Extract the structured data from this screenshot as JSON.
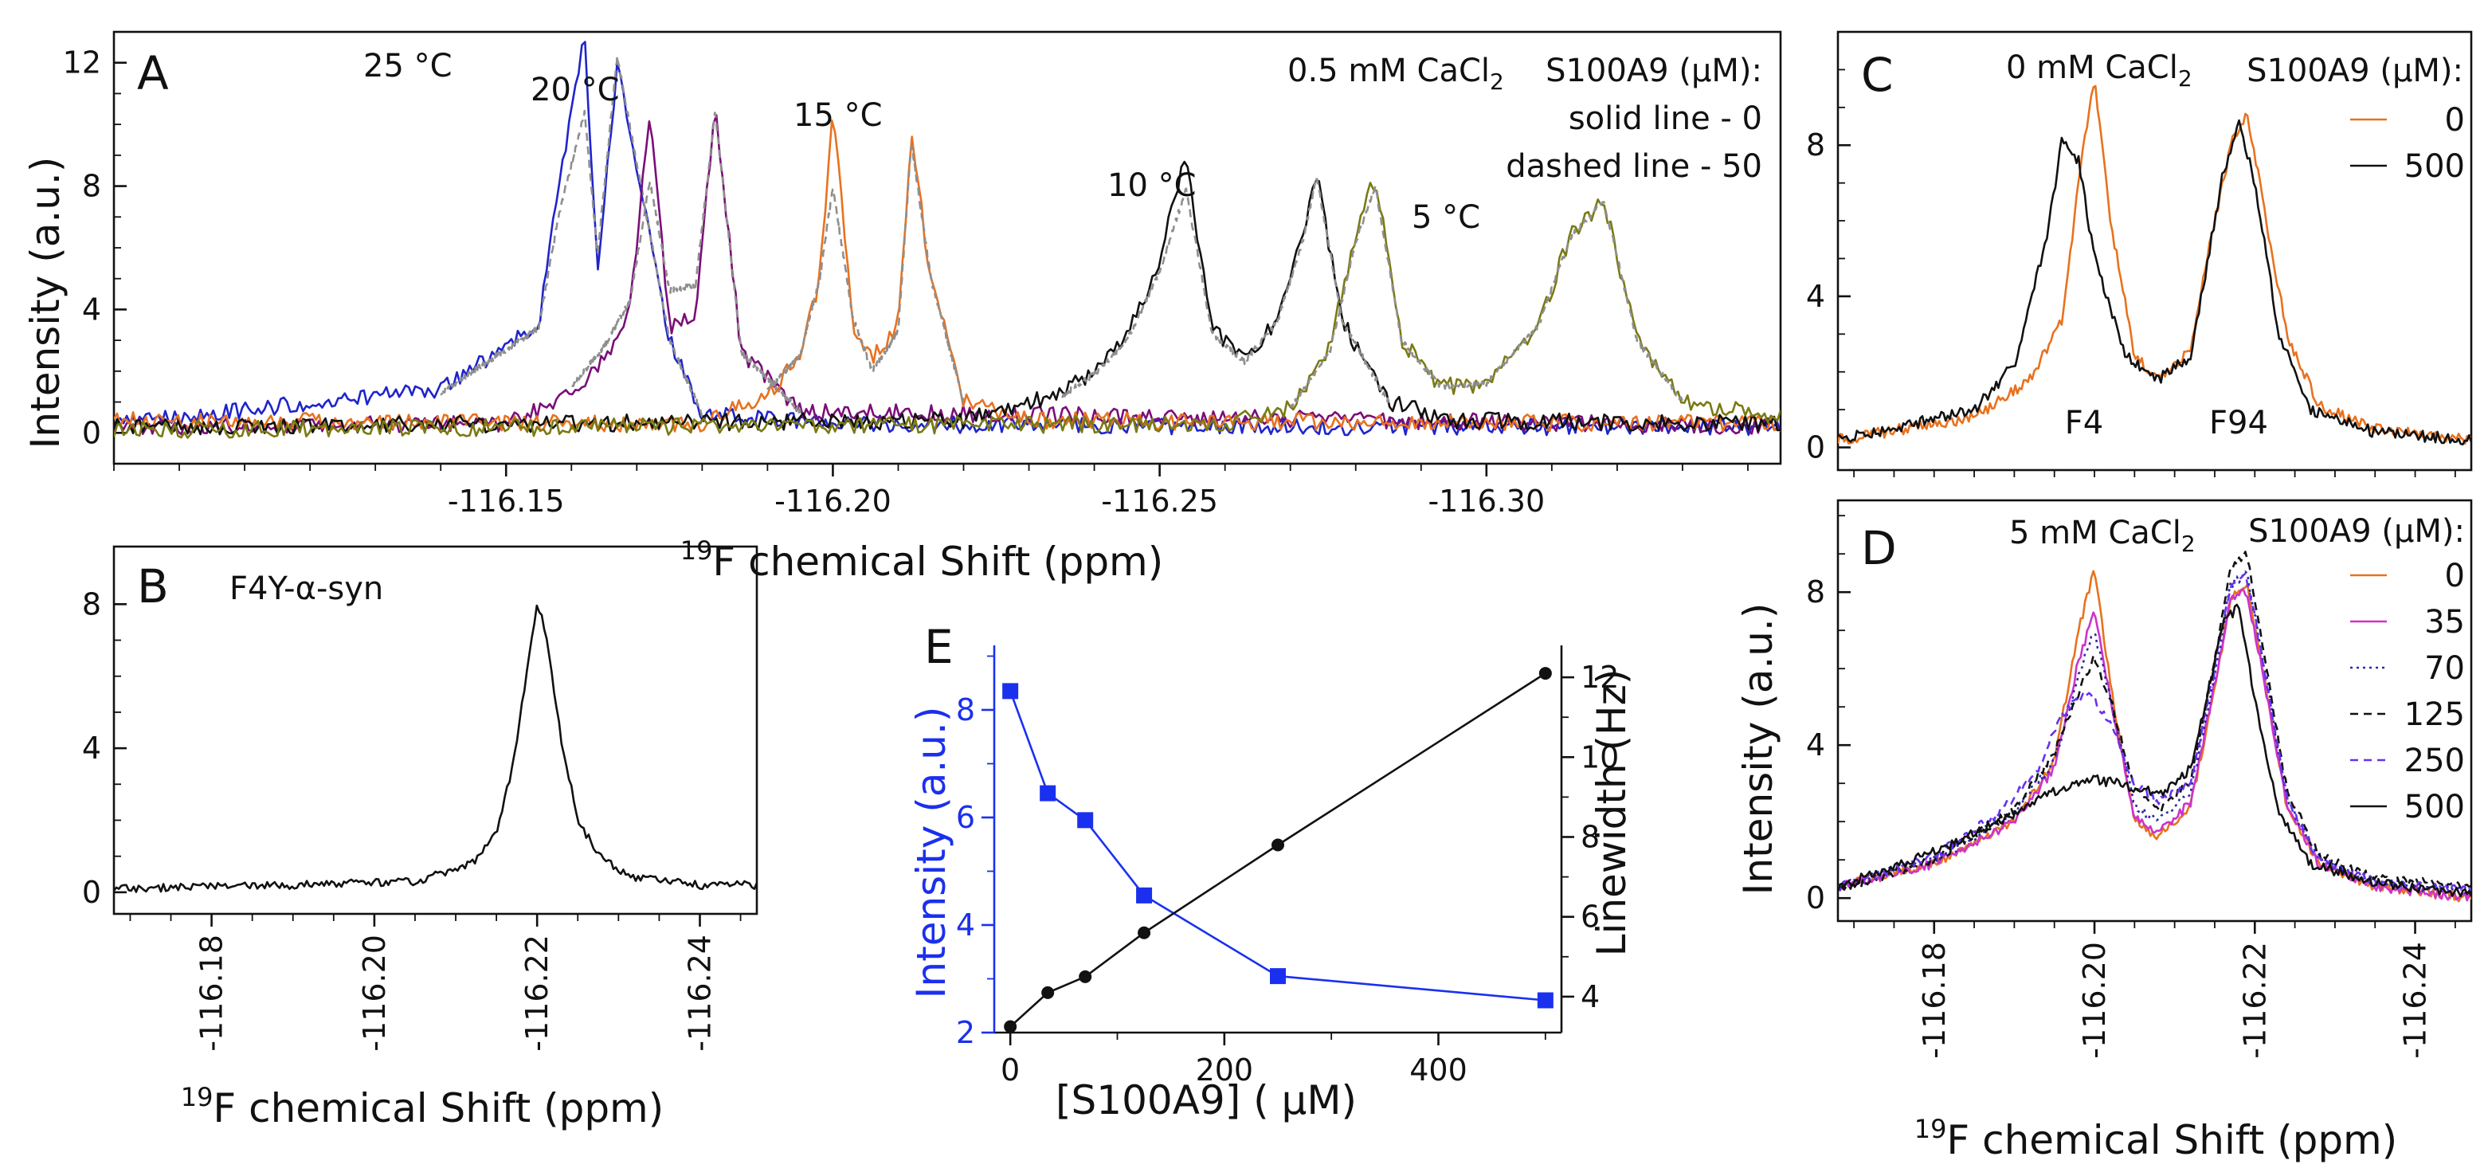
{
  "figure": {
    "colors": {
      "blue": "#1f24cc",
      "purple": "#7b0e79",
      "orange": "#e8721e",
      "black": "#111111",
      "olive": "#7a7a12",
      "gray": "#8f8f8f",
      "magenta": "#cc33cc",
      "navy": "#2a2aa8",
      "violet": "#6633ee",
      "marker_blue": "#1a30ee"
    },
    "icons": [
      "legend-swatch-icon"
    ]
  },
  "chart_data": [
    {
      "id": "A",
      "panel_label": "A",
      "type": "line",
      "xlabel": {
        "sup": "19",
        "text": "F chemical Shift (ppm)"
      },
      "ylabel": "Intensity (a.u.)",
      "xlim": [
        -116.09,
        -116.345
      ],
      "ylim": [
        -1.0,
        13.0
      ],
      "xticks": [
        -116.15,
        -116.2,
        -116.25,
        -116.3
      ],
      "xtick_labels": [
        "-116.15",
        "-116.20",
        "-116.25",
        "-116.30"
      ],
      "yticks": [
        0,
        4,
        8,
        12
      ],
      "ytick_labels": [
        "0",
        "4",
        "8",
        "12"
      ],
      "annotations": {
        "line1": "0.5 mM CaCl",
        "line1_sub": "2",
        "legend_title": "S100A9 (µM):",
        "line2": "solid line - 0",
        "line3": "dashed line - 50"
      },
      "series": [
        {
          "name": "25 °C",
          "label": "25 °C",
          "color": "#1f24cc",
          "x": [
            -116.09,
            -116.14,
            -116.155,
            -116.158,
            -116.162,
            -116.164,
            -116.167,
            -116.175,
            -116.18,
            -116.2,
            -116.26,
            -116.345
          ],
          "values": [
            0.3,
            1.4,
            3.5,
            8.0,
            12.8,
            5.0,
            12.0,
            3.0,
            0.6,
            0.3,
            0.2,
            0.2
          ]
        },
        {
          "name": "25 °C, 50 µM",
          "color": "#8f8f8f",
          "dashed": true,
          "x": [
            -116.14,
            -116.155,
            -116.158,
            -116.162,
            -116.164,
            -116.167,
            -116.175,
            -116.18
          ],
          "values": [
            1.3,
            3.4,
            7.0,
            10.4,
            5.8,
            12.2,
            3.0,
            0.6
          ]
        },
        {
          "name": "20 °C",
          "label": "20 °C",
          "color": "#7b0e79",
          "x": [
            -116.09,
            -116.15,
            -116.16,
            -116.165,
            -116.169,
            -116.172,
            -116.175,
            -116.179,
            -116.182,
            -116.186,
            -116.195,
            -116.345
          ],
          "values": [
            0.2,
            0.3,
            1.2,
            2.4,
            4.0,
            10.5,
            3.4,
            3.8,
            10.6,
            2.6,
            0.7,
            0.2
          ]
        },
        {
          "name": "20 °C, 50 µM",
          "color": "#8f8f8f",
          "dashed": true,
          "x": [
            -116.16,
            -116.165,
            -116.169,
            -116.172,
            -116.175,
            -116.179,
            -116.182,
            -116.186,
            -116.195
          ],
          "values": [
            1.5,
            2.8,
            4.3,
            8.2,
            4.6,
            4.8,
            10.4,
            2.6,
            0.7
          ]
        },
        {
          "name": "15 °C",
          "label": "15 °C",
          "color": "#e8721e",
          "x": [
            -116.09,
            -116.18,
            -116.19,
            -116.195,
            -116.198,
            -116.2,
            -116.203,
            -116.206,
            -116.21,
            -116.212,
            -116.215,
            -116.22,
            -116.23,
            -116.345
          ],
          "values": [
            0.4,
            0.3,
            1.3,
            2.4,
            5.0,
            10.5,
            3.6,
            2.4,
            3.5,
            9.6,
            5.0,
            1.0,
            0.4,
            0.3
          ]
        },
        {
          "name": "15 °C, 50 µM",
          "color": "#8f8f8f",
          "dashed": true,
          "x": [
            -116.19,
            -116.195,
            -116.198,
            -116.2,
            -116.203,
            -116.206,
            -116.21,
            -116.212,
            -116.215,
            -116.22
          ],
          "values": [
            1.4,
            2.5,
            5.0,
            8.0,
            3.8,
            2.0,
            3.3,
            9.4,
            5.0,
            1.0
          ]
        },
        {
          "name": "10 °C",
          "label": "10 °C",
          "color": "#111111",
          "x": [
            -116.09,
            -116.22,
            -116.235,
            -116.24,
            -116.245,
            -116.25,
            -116.254,
            -116.256,
            -116.258,
            -116.263,
            -116.268,
            -116.272,
            -116.274,
            -116.278,
            -116.285,
            -116.295,
            -116.345
          ],
          "values": [
            0.2,
            0.4,
            1.3,
            2.0,
            3.2,
            5.5,
            9.2,
            6.0,
            3.4,
            2.4,
            3.6,
            6.5,
            8.4,
            3.6,
            1.0,
            0.4,
            0.3
          ]
        },
        {
          "name": "10 °C, 50 µM",
          "color": "#8f8f8f",
          "dashed": true,
          "x": [
            -116.235,
            -116.24,
            -116.245,
            -116.25,
            -116.254,
            -116.256,
            -116.258,
            -116.263,
            -116.268,
            -116.272,
            -116.274,
            -116.278,
            -116.285
          ],
          "values": [
            1.2,
            1.9,
            3.0,
            5.2,
            7.9,
            5.6,
            3.2,
            2.3,
            3.6,
            6.3,
            8.3,
            3.6,
            1.0
          ]
        },
        {
          "name": "5 °C",
          "label": "5 °C",
          "color": "#7a7a12",
          "x": [
            -116.09,
            -116.26,
            -116.27,
            -116.276,
            -116.28,
            -116.283,
            -116.287,
            -116.293,
            -116.3,
            -116.308,
            -116.313,
            -116.318,
            -116.323,
            -116.33,
            -116.345
          ],
          "values": [
            0.1,
            0.3,
            0.8,
            2.8,
            6.5,
            8.3,
            3.0,
            1.5,
            1.6,
            3.5,
            6.5,
            7.5,
            3.0,
            1.0,
            0.5
          ]
        },
        {
          "name": "5 °C, 50 µM",
          "color": "#8f8f8f",
          "dashed": true,
          "x": [
            -116.27,
            -116.276,
            -116.28,
            -116.283,
            -116.287,
            -116.293,
            -116.3,
            -116.308,
            -116.313,
            -116.318,
            -116.323,
            -116.33
          ],
          "values": [
            0.8,
            2.6,
            6.2,
            8.0,
            3.0,
            1.5,
            1.6,
            3.5,
            6.4,
            7.5,
            3.0,
            1.0
          ]
        }
      ]
    },
    {
      "id": "B",
      "panel_label": "B",
      "type": "line",
      "title": "F4Y-α-syn",
      "xlabel": {
        "sup": "19",
        "text": "F chemical Shift (ppm)"
      },
      "xlim": [
        -116.168,
        -116.247
      ],
      "ylim": [
        -0.6,
        9.6
      ],
      "xticks": [
        -116.18,
        -116.2,
        -116.22,
        -116.24
      ],
      "xtick_labels": [
        "-116.18",
        "-116.20",
        "-116.22",
        "-116.24"
      ],
      "yticks": [
        0,
        4,
        8
      ],
      "ytick_labels": [
        "0",
        "4",
        "8"
      ],
      "series": [
        {
          "name": "F4Y-α-syn",
          "color": "#111111",
          "x": [
            -116.168,
            -116.19,
            -116.205,
            -116.212,
            -116.215,
            -116.217,
            -116.219,
            -116.22,
            -116.221,
            -116.223,
            -116.225,
            -116.228,
            -116.232,
            -116.24,
            -116.247
          ],
          "values": [
            0.1,
            0.2,
            0.3,
            0.8,
            1.6,
            3.5,
            6.5,
            8.1,
            7.2,
            4.2,
            2.0,
            0.9,
            0.4,
            0.2,
            0.2
          ]
        }
      ]
    },
    {
      "id": "C",
      "panel_label": "C",
      "type": "line",
      "xlim": [
        -116.168,
        -116.247
      ],
      "ylim": [
        -0.6,
        11.0
      ],
      "yticks": [
        0,
        4,
        8
      ],
      "ytick_labels": [
        "0",
        "4",
        "8"
      ],
      "annotations": {
        "title": "0 mM CaCl",
        "title_sub": "2",
        "legend_title": "S100A9 (µM):",
        "peak1": "F4",
        "peak2": "F94"
      },
      "series": [
        {
          "name": "0",
          "label": "0",
          "color": "#e8721e",
          "x": [
            -116.168,
            -116.185,
            -116.192,
            -116.196,
            -116.198,
            -116.2,
            -116.202,
            -116.205,
            -116.208,
            -116.212,
            -116.214,
            -116.217,
            -116.219,
            -116.221,
            -116.224,
            -116.228,
            -116.235,
            -116.247
          ],
          "values": [
            0.2,
            0.8,
            1.8,
            3.4,
            7.0,
            9.8,
            6.0,
            2.4,
            1.8,
            2.6,
            5.0,
            8.0,
            8.9,
            6.5,
            3.0,
            1.1,
            0.5,
            0.2
          ]
        },
        {
          "name": "500",
          "label": "500",
          "color": "#111111",
          "x": [
            -116.168,
            -116.185,
            -116.19,
            -116.194,
            -116.196,
            -116.198,
            -116.2,
            -116.204,
            -116.208,
            -116.212,
            -116.214,
            -116.216,
            -116.218,
            -116.22,
            -116.223,
            -116.227,
            -116.235,
            -116.247
          ],
          "values": [
            0.2,
            1.0,
            2.2,
            5.5,
            8.2,
            7.6,
            5.0,
            2.4,
            1.8,
            2.4,
            4.8,
            7.2,
            8.6,
            7.0,
            3.0,
            1.0,
            0.4,
            0.2
          ]
        }
      ]
    },
    {
      "id": "D",
      "panel_label": "D",
      "type": "line",
      "xlabel": {
        "sup": "19",
        "text": "F chemical Shift (ppm)"
      },
      "ylabel": "Intensity (a.u.)",
      "xlim": [
        -116.168,
        -116.247
      ],
      "ylim": [
        -0.6,
        10.4
      ],
      "xticks": [
        -116.18,
        -116.2,
        -116.22,
        -116.24
      ],
      "xtick_labels": [
        "-116.18",
        "-116.20",
        "-116.22",
        "-116.24"
      ],
      "yticks": [
        0,
        4,
        8
      ],
      "ytick_labels": [
        "0",
        "4",
        "8"
      ],
      "annotations": {
        "title": "5 mM CaCl",
        "title_sub": "2",
        "legend_title": "S100A9 (µM):"
      },
      "series": [
        {
          "name": "0",
          "label": "0",
          "color": "#e8721e",
          "x": [
            -116.168,
            -116.18,
            -116.19,
            -116.195,
            -116.198,
            -116.2,
            -116.202,
            -116.205,
            -116.208,
            -116.212,
            -116.215,
            -116.217,
            -116.219,
            -116.221,
            -116.224,
            -116.228,
            -116.235,
            -116.247
          ],
          "values": [
            0.3,
            0.9,
            2.0,
            3.6,
            7.0,
            8.6,
            5.6,
            2.0,
            1.6,
            2.4,
            5.5,
            7.8,
            8.2,
            6.0,
            2.4,
            0.9,
            0.3,
            0.0
          ]
        },
        {
          "name": "35",
          "label": "35",
          "color": "#cc33cc",
          "x": [
            -116.168,
            -116.18,
            -116.19,
            -116.195,
            -116.198,
            -116.2,
            -116.202,
            -116.205,
            -116.208,
            -116.212,
            -116.215,
            -116.217,
            -116.219,
            -116.221,
            -116.224,
            -116.228,
            -116.235,
            -116.247
          ],
          "values": [
            0.3,
            0.9,
            2.0,
            3.4,
            6.2,
            7.5,
            5.2,
            2.1,
            1.7,
            2.5,
            5.6,
            7.9,
            8.0,
            5.9,
            2.4,
            0.9,
            0.3,
            0.0
          ]
        },
        {
          "name": "70",
          "label": "70",
          "color": "#2a2aa8",
          "dotted": true,
          "x": [
            -116.168,
            -116.18,
            -116.19,
            -116.195,
            -116.198,
            -116.2,
            -116.202,
            -116.205,
            -116.208,
            -116.212,
            -116.215,
            -116.217,
            -116.219,
            -116.221,
            -116.224,
            -116.228,
            -116.235,
            -116.247
          ],
          "values": [
            0.3,
            1.0,
            2.2,
            3.6,
            5.8,
            7.0,
            5.2,
            2.4,
            2.0,
            2.8,
            5.8,
            8.2,
            8.5,
            6.3,
            2.6,
            1.0,
            0.4,
            0.2
          ]
        },
        {
          "name": "125",
          "label": "125",
          "color": "#111111",
          "dashed": true,
          "x": [
            -116.168,
            -116.18,
            -116.19,
            -116.195,
            -116.198,
            -116.2,
            -116.202,
            -116.205,
            -116.208,
            -116.212,
            -116.215,
            -116.217,
            -116.219,
            -116.221,
            -116.224,
            -116.228,
            -116.235,
            -116.247
          ],
          "values": [
            0.2,
            1.0,
            2.3,
            3.8,
            5.4,
            6.3,
            5.2,
            2.8,
            2.3,
            3.0,
            6.2,
            8.6,
            9.0,
            6.6,
            2.8,
            1.1,
            0.5,
            0.3
          ]
        },
        {
          "name": "250",
          "label": "250",
          "color": "#6633ee",
          "dashed": true,
          "x": [
            -116.168,
            -116.18,
            -116.188,
            -116.193,
            -116.196,
            -116.199,
            -116.202,
            -116.205,
            -116.208,
            -116.212,
            -116.215,
            -116.217,
            -116.219,
            -116.221,
            -116.224,
            -116.228,
            -116.235,
            -116.247
          ],
          "values": [
            0.3,
            1.1,
            2.2,
            3.4,
            4.8,
            5.4,
            4.6,
            3.0,
            2.5,
            3.0,
            6.0,
            8.2,
            8.4,
            6.2,
            2.6,
            1.0,
            0.4,
            0.2
          ]
        },
        {
          "name": "500",
          "label": "500",
          "color": "#111111",
          "x": [
            -116.168,
            -116.18,
            -116.19,
            -116.195,
            -116.198,
            -116.2,
            -116.203,
            -116.206,
            -116.209,
            -116.212,
            -116.214,
            -116.216,
            -116.218,
            -116.22,
            -116.223,
            -116.227,
            -116.235,
            -116.247
          ],
          "values": [
            0.3,
            1.2,
            2.2,
            2.8,
            3.0,
            3.1,
            3.0,
            2.8,
            2.8,
            3.4,
            5.2,
            7.2,
            7.6,
            5.2,
            2.2,
            0.9,
            0.4,
            0.1
          ]
        }
      ]
    },
    {
      "id": "E",
      "panel_label": "E",
      "type": "line",
      "xlabel": "[S100A9] ( µM)",
      "ylabel": "Intensity (a.u.)",
      "y2label": "Linewidth (Hz)",
      "xlim": [
        -15,
        515
      ],
      "ylim": [
        2.0,
        9.2
      ],
      "y2lim": [
        3.1,
        12.8
      ],
      "xticks": [
        0,
        200,
        400
      ],
      "xtick_labels": [
        "0",
        "200",
        "400"
      ],
      "yticks": [
        2,
        4,
        6,
        8
      ],
      "ytick_labels": [
        "2",
        "4",
        "6",
        "8"
      ],
      "y2ticks": [
        4,
        6,
        8,
        10,
        12
      ],
      "y2tick_labels": [
        "4",
        "6",
        "8",
        "10",
        "12"
      ],
      "series": [
        {
          "name": "Intensity",
          "axis": "left",
          "marker": "square",
          "color": "#1a30ee",
          "x": [
            0,
            35,
            70,
            125,
            250,
            500
          ],
          "values": [
            8.35,
            6.45,
            5.95,
            4.55,
            3.05,
            2.6
          ]
        },
        {
          "name": "Linewidth",
          "axis": "right",
          "marker": "circle",
          "color": "#111111",
          "x": [
            0,
            35,
            70,
            125,
            250,
            500
          ],
          "values": [
            3.25,
            4.1,
            4.5,
            5.6,
            7.8,
            12.1
          ]
        }
      ]
    }
  ]
}
